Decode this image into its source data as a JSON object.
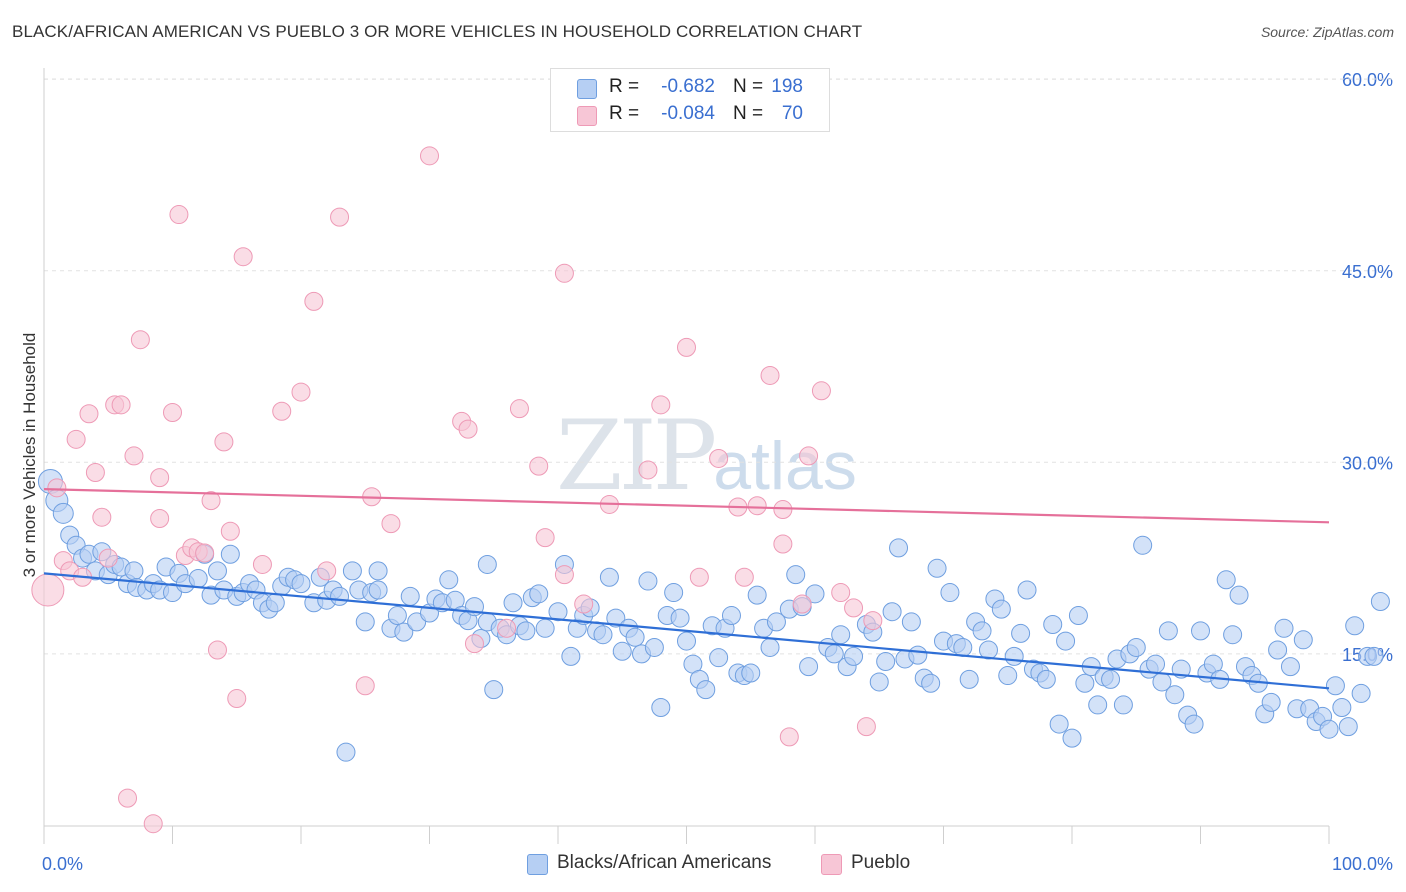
{
  "title": "BLACK/AFRICAN AMERICAN VS PUEBLO 3 OR MORE VEHICLES IN HOUSEHOLD CORRELATION CHART",
  "source": "Source: ZipAtlas.com",
  "watermark": {
    "zip": "ZIP",
    "atlas": "atlas"
  },
  "legend_top": [
    {
      "r_label": "R =",
      "r": "-0.682",
      "n_label": "N =",
      "n": "198",
      "color": "#8fb4ea"
    },
    {
      "r_label": "R =",
      "r": "-0.084",
      "n_label": "N =",
      "n": "70",
      "color": "#f2a6bf"
    }
  ],
  "colors": {
    "blue_fill": "#b6cff3",
    "blue_stroke": "#6f9fe0",
    "blue_line": "#2f6fd6",
    "pink_fill": "#f7c6d6",
    "pink_stroke": "#ee9ab6",
    "pink_line": "#e5709a",
    "tick_text": "#3a6fd0",
    "grid": "#e2e2e2"
  },
  "chart_data": {
    "type": "scatter",
    "title": "BLACK/AFRICAN AMERICAN VS PUEBLO 3 OR MORE VEHICLES IN HOUSEHOLD CORRELATION CHART",
    "xlabel": "",
    "ylabel": "3 or more Vehicles in Household",
    "xlim": [
      0,
      100
    ],
    "ylim": [
      0,
      64
    ],
    "x_tick_labels": [
      "0.0%",
      "100.0%"
    ],
    "y_ticks": [
      15,
      30,
      45,
      60
    ],
    "y_tick_labels": [
      "15.0%",
      "30.0%",
      "45.0%",
      "60.0%"
    ],
    "grid": true,
    "legend_position": "bottom",
    "series": [
      {
        "name": "Blacks/African Americans",
        "color": "#6f9fe0",
        "trend": {
          "x": [
            0,
            100
          ],
          "y": [
            21.3,
            12.3
          ]
        },
        "points": [
          [
            0.5,
            28.5
          ],
          [
            1.0,
            27.0
          ],
          [
            1.5,
            26.0
          ],
          [
            2.0,
            24.3
          ],
          [
            2.5,
            23.5
          ],
          [
            3.0,
            22.5
          ],
          [
            3.5,
            22.8
          ],
          [
            4.0,
            21.5
          ],
          [
            4.5,
            23.0
          ],
          [
            5.0,
            21.2
          ],
          [
            5.5,
            22.0
          ],
          [
            6.0,
            21.8
          ],
          [
            6.5,
            20.5
          ],
          [
            7.0,
            21.5
          ],
          [
            7.2,
            20.2
          ],
          [
            8.0,
            20.0
          ],
          [
            8.5,
            20.5
          ],
          [
            9.0,
            20.0
          ],
          [
            9.5,
            21.8
          ],
          [
            10.0,
            19.8
          ],
          [
            10.5,
            21.3
          ],
          [
            11.0,
            20.5
          ],
          [
            12.0,
            20.9
          ],
          [
            12.5,
            22.8
          ],
          [
            13.0,
            19.6
          ],
          [
            13.5,
            21.5
          ],
          [
            14.0,
            20.0
          ],
          [
            14.5,
            22.8
          ],
          [
            15.0,
            19.5
          ],
          [
            15.5,
            19.8
          ],
          [
            16.0,
            20.5
          ],
          [
            16.5,
            20.0
          ],
          [
            17.0,
            19.0
          ],
          [
            17.5,
            18.5
          ],
          [
            18.0,
            19.0
          ],
          [
            18.5,
            20.3
          ],
          [
            19.0,
            21.0
          ],
          [
            19.5,
            20.8
          ],
          [
            20.0,
            20.5
          ],
          [
            21.0,
            19.0
          ],
          [
            21.5,
            21.0
          ],
          [
            22.0,
            19.2
          ],
          [
            22.5,
            20.0
          ],
          [
            23.0,
            19.5
          ],
          [
            24.0,
            21.5
          ],
          [
            24.5,
            20.0
          ],
          [
            25.0,
            17.5
          ],
          [
            25.5,
            19.8
          ],
          [
            26.0,
            20.0
          ],
          [
            27.0,
            17.0
          ],
          [
            27.5,
            18.0
          ],
          [
            28.0,
            16.7
          ],
          [
            28.5,
            19.5
          ],
          [
            29.0,
            17.5
          ],
          [
            30.0,
            18.2
          ],
          [
            30.5,
            19.3
          ],
          [
            31.0,
            19.0
          ],
          [
            31.5,
            20.8
          ],
          [
            32.0,
            19.2
          ],
          [
            32.5,
            18.0
          ],
          [
            33.0,
            17.6
          ],
          [
            33.5,
            18.7
          ],
          [
            34.0,
            16.2
          ],
          [
            34.5,
            17.5
          ],
          [
            35.0,
            12.2
          ],
          [
            35.5,
            17.0
          ],
          [
            36.0,
            16.5
          ],
          [
            37.0,
            17.2
          ],
          [
            37.5,
            16.8
          ],
          [
            38.0,
            19.4
          ],
          [
            38.5,
            19.7
          ],
          [
            39.0,
            17.0
          ],
          [
            40.0,
            18.3
          ],
          [
            40.5,
            22.0
          ],
          [
            41.0,
            14.8
          ],
          [
            41.5,
            17.0
          ],
          [
            42.0,
            18.0
          ],
          [
            42.5,
            18.6
          ],
          [
            43.0,
            16.8
          ],
          [
            43.5,
            16.5
          ],
          [
            44.0,
            21.0
          ],
          [
            44.5,
            17.8
          ],
          [
            45.0,
            15.2
          ],
          [
            45.5,
            17.0
          ],
          [
            46.0,
            16.3
          ],
          [
            46.5,
            15.0
          ],
          [
            47.0,
            20.7
          ],
          [
            47.5,
            15.5
          ],
          [
            48.0,
            10.8
          ],
          [
            48.5,
            18.0
          ],
          [
            49.0,
            19.8
          ],
          [
            49.5,
            17.8
          ],
          [
            50.0,
            16.0
          ],
          [
            50.5,
            14.2
          ],
          [
            51.0,
            13.0
          ],
          [
            51.5,
            12.2
          ],
          [
            52.0,
            17.2
          ],
          [
            52.5,
            14.7
          ],
          [
            53.0,
            17.0
          ],
          [
            53.5,
            18.0
          ],
          [
            54.0,
            13.5
          ],
          [
            54.5,
            13.3
          ],
          [
            55.0,
            13.5
          ],
          [
            55.5,
            19.6
          ],
          [
            56.0,
            17.0
          ],
          [
            56.5,
            15.5
          ],
          [
            57.0,
            17.5
          ],
          [
            58.0,
            18.5
          ],
          [
            58.5,
            21.2
          ],
          [
            59.0,
            18.7
          ],
          [
            59.5,
            14.0
          ],
          [
            60.0,
            19.7
          ],
          [
            61.0,
            15.5
          ],
          [
            61.5,
            15.0
          ],
          [
            62.0,
            16.5
          ],
          [
            62.5,
            14.0
          ],
          [
            63.0,
            14.8
          ],
          [
            64.0,
            17.3
          ],
          [
            64.5,
            16.7
          ],
          [
            65.0,
            12.8
          ],
          [
            65.5,
            14.4
          ],
          [
            66.0,
            18.3
          ],
          [
            66.5,
            23.3
          ],
          [
            67.0,
            14.6
          ],
          [
            67.5,
            17.5
          ],
          [
            68.0,
            14.9
          ],
          [
            68.5,
            13.1
          ],
          [
            69.0,
            12.7
          ],
          [
            69.5,
            21.7
          ],
          [
            70.0,
            16.0
          ],
          [
            70.5,
            19.8
          ],
          [
            71.0,
            15.8
          ],
          [
            71.5,
            15.5
          ],
          [
            72.0,
            13.0
          ],
          [
            72.5,
            17.5
          ],
          [
            73.0,
            16.8
          ],
          [
            73.5,
            15.3
          ],
          [
            74.0,
            19.3
          ],
          [
            74.5,
            18.5
          ],
          [
            75.0,
            13.3
          ],
          [
            75.5,
            14.8
          ],
          [
            76.0,
            16.6
          ],
          [
            76.5,
            20.0
          ],
          [
            77.0,
            13.8
          ],
          [
            77.5,
            13.5
          ],
          [
            78.0,
            13.0
          ],
          [
            78.5,
            17.3
          ],
          [
            79.0,
            9.5
          ],
          [
            79.5,
            16.0
          ],
          [
            80.0,
            8.4
          ],
          [
            80.5,
            18.0
          ],
          [
            81.0,
            12.7
          ],
          [
            81.5,
            14.0
          ],
          [
            82.0,
            11.0
          ],
          [
            82.5,
            13.2
          ],
          [
            83.0,
            13.0
          ],
          [
            83.5,
            14.6
          ],
          [
            84.0,
            11.0
          ],
          [
            84.5,
            15.0
          ],
          [
            85.0,
            15.5
          ],
          [
            85.5,
            23.5
          ],
          [
            86.0,
            13.8
          ],
          [
            86.5,
            14.2
          ],
          [
            87.0,
            12.8
          ],
          [
            87.5,
            16.8
          ],
          [
            88.0,
            11.8
          ],
          [
            88.5,
            13.8
          ],
          [
            89.0,
            10.2
          ],
          [
            89.5,
            9.5
          ],
          [
            90.0,
            16.8
          ],
          [
            90.5,
            13.5
          ],
          [
            91.0,
            14.2
          ],
          [
            91.5,
            13.0
          ],
          [
            92.0,
            20.8
          ],
          [
            92.5,
            16.5
          ],
          [
            93.0,
            19.6
          ],
          [
            93.5,
            14.0
          ],
          [
            94.0,
            13.3
          ],
          [
            94.5,
            12.7
          ],
          [
            95.0,
            10.3
          ],
          [
            95.5,
            11.2
          ],
          [
            96.0,
            15.3
          ],
          [
            96.5,
            17.0
          ],
          [
            97.0,
            14.0
          ],
          [
            97.5,
            10.7
          ],
          [
            98.0,
            16.1
          ],
          [
            98.5,
            10.7
          ],
          [
            99.0,
            9.7
          ],
          [
            99.5,
            10.1
          ],
          [
            100.0,
            9.1
          ],
          [
            100.5,
            12.5
          ],
          [
            101.0,
            10.8
          ],
          [
            101.5,
            9.3
          ],
          [
            102.0,
            17.2
          ],
          [
            102.5,
            11.9
          ],
          [
            103.0,
            14.8
          ],
          [
            103.5,
            14.8
          ],
          [
            104.0,
            19.1
          ],
          [
            26.0,
            21.5
          ],
          [
            34.5,
            22.0
          ],
          [
            36.5,
            19.0
          ],
          [
            23.5,
            7.3
          ]
        ]
      },
      {
        "name": "Pueblo",
        "color": "#ee9ab6",
        "trend": {
          "x": [
            0,
            100
          ],
          "y": [
            27.9,
            25.3
          ]
        },
        "points": [
          [
            0.3,
            20.0
          ],
          [
            1.0,
            28.0
          ],
          [
            1.5,
            22.3
          ],
          [
            2.0,
            21.5
          ],
          [
            2.5,
            31.8
          ],
          [
            3.0,
            21.0
          ],
          [
            3.5,
            33.8
          ],
          [
            4.0,
            29.2
          ],
          [
            4.5,
            25.7
          ],
          [
            5.0,
            22.5
          ],
          [
            5.5,
            34.5
          ],
          [
            6.0,
            34.5
          ],
          [
            6.5,
            3.7
          ],
          [
            7.0,
            30.5
          ],
          [
            7.5,
            39.6
          ],
          [
            8.5,
            1.7
          ],
          [
            9.0,
            25.6
          ],
          [
            9.0,
            28.8
          ],
          [
            10.0,
            33.9
          ],
          [
            10.5,
            49.4
          ],
          [
            11.0,
            22.7
          ],
          [
            11.5,
            23.3
          ],
          [
            12.0,
            23.0
          ],
          [
            12.5,
            22.9
          ],
          [
            13.0,
            27.0
          ],
          [
            13.5,
            15.3
          ],
          [
            14.0,
            31.6
          ],
          [
            14.5,
            24.6
          ],
          [
            15.0,
            11.5
          ],
          [
            15.5,
            46.1
          ],
          [
            17.0,
            22.0
          ],
          [
            18.5,
            34.0
          ],
          [
            20.0,
            35.5
          ],
          [
            21.0,
            42.6
          ],
          [
            22.0,
            21.5
          ],
          [
            23.0,
            49.2
          ],
          [
            25.0,
            12.5
          ],
          [
            25.5,
            27.3
          ],
          [
            27.0,
            25.2
          ],
          [
            30.0,
            54.0
          ],
          [
            32.5,
            33.2
          ],
          [
            33.0,
            32.6
          ],
          [
            33.5,
            15.8
          ],
          [
            36.0,
            17.0
          ],
          [
            37.0,
            34.2
          ],
          [
            38.5,
            29.7
          ],
          [
            39.0,
            24.1
          ],
          [
            40.5,
            21.2
          ],
          [
            40.5,
            44.8
          ],
          [
            42.0,
            18.9
          ],
          [
            44.0,
            26.7
          ],
          [
            47.0,
            29.4
          ],
          [
            48.0,
            34.5
          ],
          [
            50.0,
            39.0
          ],
          [
            51.0,
            21.0
          ],
          [
            52.5,
            30.3
          ],
          [
            54.0,
            26.5
          ],
          [
            54.5,
            21.0
          ],
          [
            55.5,
            26.6
          ],
          [
            56.5,
            36.8
          ],
          [
            57.5,
            26.3
          ],
          [
            57.5,
            23.6
          ],
          [
            58.0,
            8.5
          ],
          [
            59.0,
            18.9
          ],
          [
            59.5,
            30.5
          ],
          [
            60.5,
            35.6
          ],
          [
            62.0,
            19.8
          ],
          [
            63.0,
            18.6
          ],
          [
            64.0,
            9.3
          ],
          [
            64.5,
            17.6
          ]
        ]
      }
    ]
  },
  "legend_bottom": [
    {
      "label": "Blacks/African Americans",
      "color": "#b6cff3"
    },
    {
      "label": "Pueblo",
      "color": "#f7c6d6"
    }
  ]
}
